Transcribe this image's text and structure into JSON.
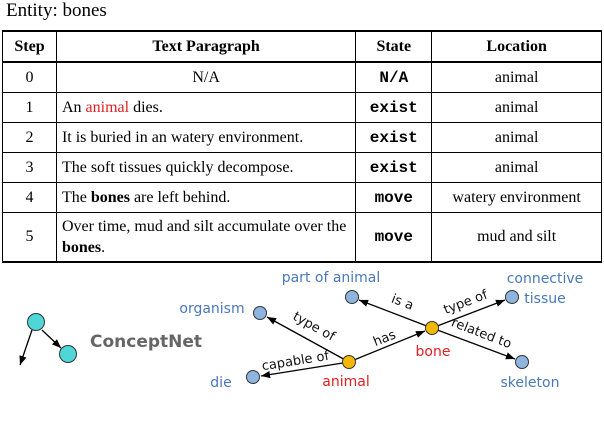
{
  "entity": "Entity: bones",
  "table": {
    "header": [
      "Step",
      "Text Paragraph",
      "State",
      "Location"
    ],
    "rows": [
      {
        "step": 0,
        "text": [
          "N/A"
        ],
        "state": "N/A",
        "location": "animal"
      },
      {
        "step": 1,
        "text": [
          "An ",
          "animal",
          " dies."
        ],
        "state": "exist",
        "location": "animal"
      },
      {
        "step": 2,
        "text": [
          "It is buried in an watery environment."
        ],
        "state": "exist",
        "location": "animal"
      },
      {
        "step": 3,
        "text": [
          "The soft tissues quickly decompose."
        ],
        "state": "exist",
        "location": "animal"
      },
      {
        "step": 4,
        "text": [
          "The ",
          "bones",
          " are left behind."
        ],
        "state": "move",
        "location": "watery environment"
      },
      {
        "step": 5,
        "text": [
          "Over time, mud and silt accumulate over the ",
          "bones",
          "."
        ],
        "state": "move",
        "location": "mud and silt"
      }
    ]
  },
  "legend": "ConceptNet",
  "graph": {
    "nodes": [
      {
        "label": [
          "part of animal"
        ]
      },
      {
        "label": [
          "connective",
          "tissue"
        ]
      },
      {
        "label": [
          "organism"
        ]
      },
      {
        "label": [
          "bone"
        ]
      },
      {
        "label": [
          "animal"
        ]
      },
      {
        "label": [
          "die"
        ]
      },
      {
        "label": [
          "skeleton"
        ]
      }
    ],
    "edges": [
      "type of",
      "capable of",
      "has",
      "is a",
      "type of",
      "related to"
    ]
  }
}
